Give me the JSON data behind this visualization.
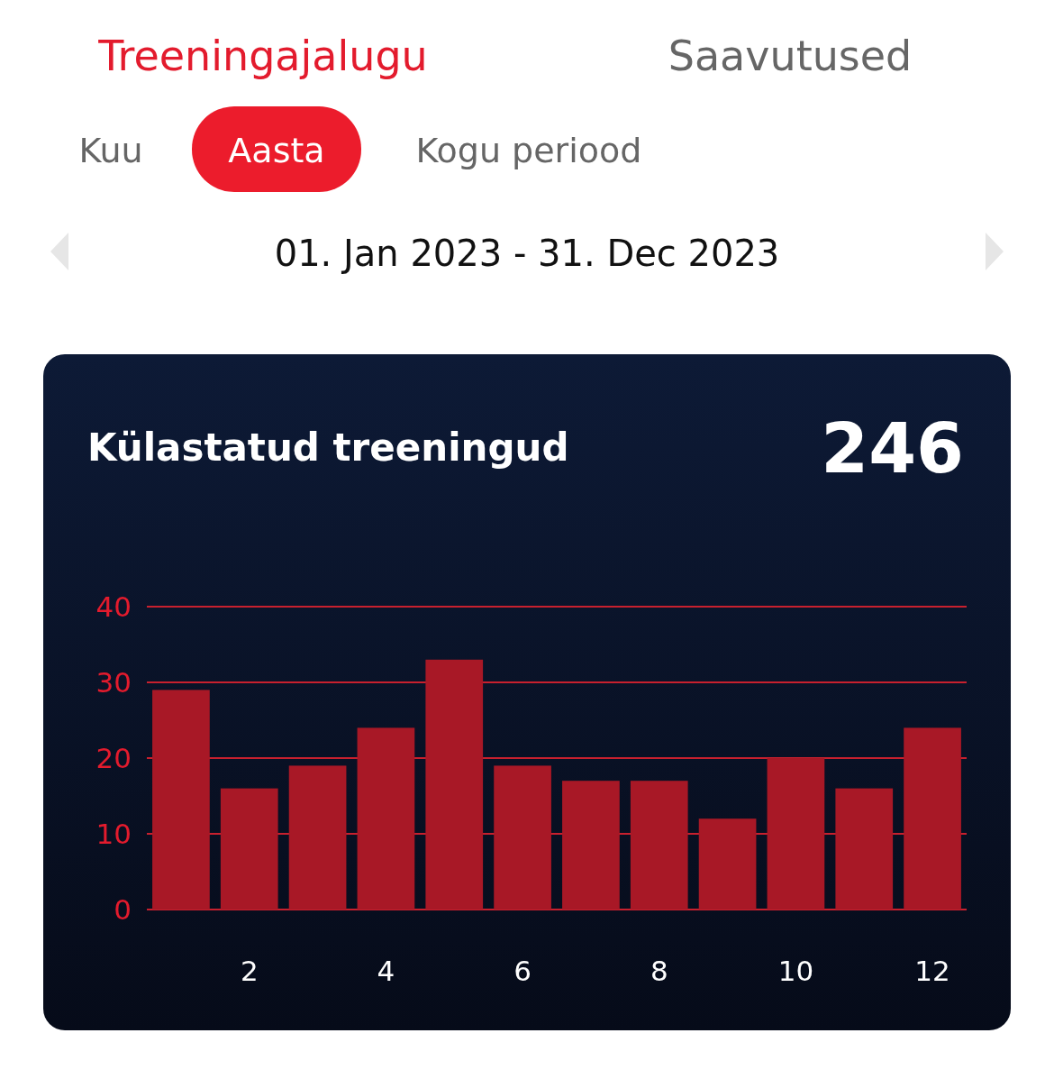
{
  "chart_data": {
    "type": "bar",
    "title": "Külastatud treeningud",
    "categories": [
      null,
      "2",
      null,
      "4",
      null,
      "6",
      null,
      "8",
      null,
      "10",
      null,
      "12"
    ],
    "values": [
      29,
      16,
      19,
      24,
      33,
      19,
      17,
      17,
      12,
      20,
      16,
      24
    ],
    "color": "#a81826",
    "ylim": [
      0,
      40
    ],
    "yticks": [
      0,
      10,
      20,
      30,
      40
    ],
    "grid": "y",
    "annotations": [
      "Treeningajalugu",
      "Saavutused",
      "Kuu",
      "Aasta",
      "Kogu periood",
      "01. Jan 2023 - 31. Dec 2023",
      "246"
    ]
  }
}
